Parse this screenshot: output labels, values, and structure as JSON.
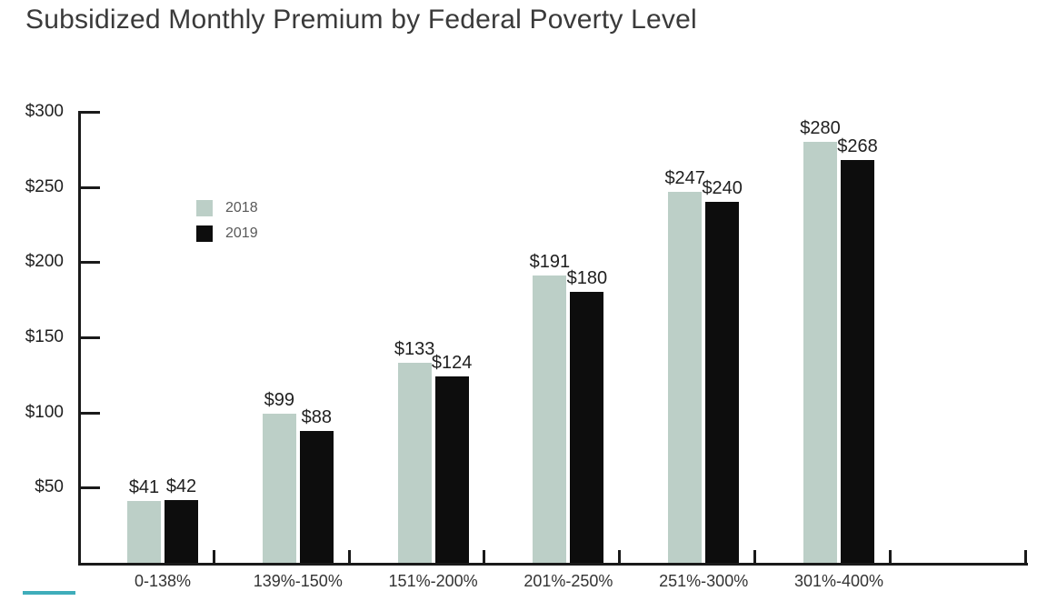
{
  "title": "Subsidized Monthly Premium by Federal Poverty Level",
  "accent_bar_color": "#3fadba",
  "axis_color": "#1a1a1a",
  "chart_data": {
    "type": "bar",
    "title": "Subsidized Monthly Premium by Federal Poverty Level",
    "categories": [
      "0-138%",
      "139%-150%",
      "151%-200%",
      "201%-250%",
      "251%-300%",
      "301%-400%"
    ],
    "series": [
      {
        "name": "2018",
        "color": "#bccfc7",
        "values": [
          41,
          99,
          133,
          191,
          247,
          280
        ],
        "labels": [
          "$41",
          "$99",
          "$133",
          "$191",
          "$247",
          "$280"
        ]
      },
      {
        "name": "2019",
        "color": "#0d0d0d",
        "values": [
          42,
          88,
          124,
          180,
          240,
          268
        ],
        "labels": [
          "$42",
          "$88",
          "$124",
          "$180",
          "$240",
          "$268"
        ]
      }
    ],
    "xlabel": "",
    "ylabel": "",
    "ylim": [
      0,
      300
    ],
    "ytick_step": 50,
    "ytick_labels": [
      "$50",
      "$100",
      "$150",
      "$200",
      "$250",
      "$300"
    ],
    "grid": false,
    "legend_position": "inside-upper-left"
  }
}
